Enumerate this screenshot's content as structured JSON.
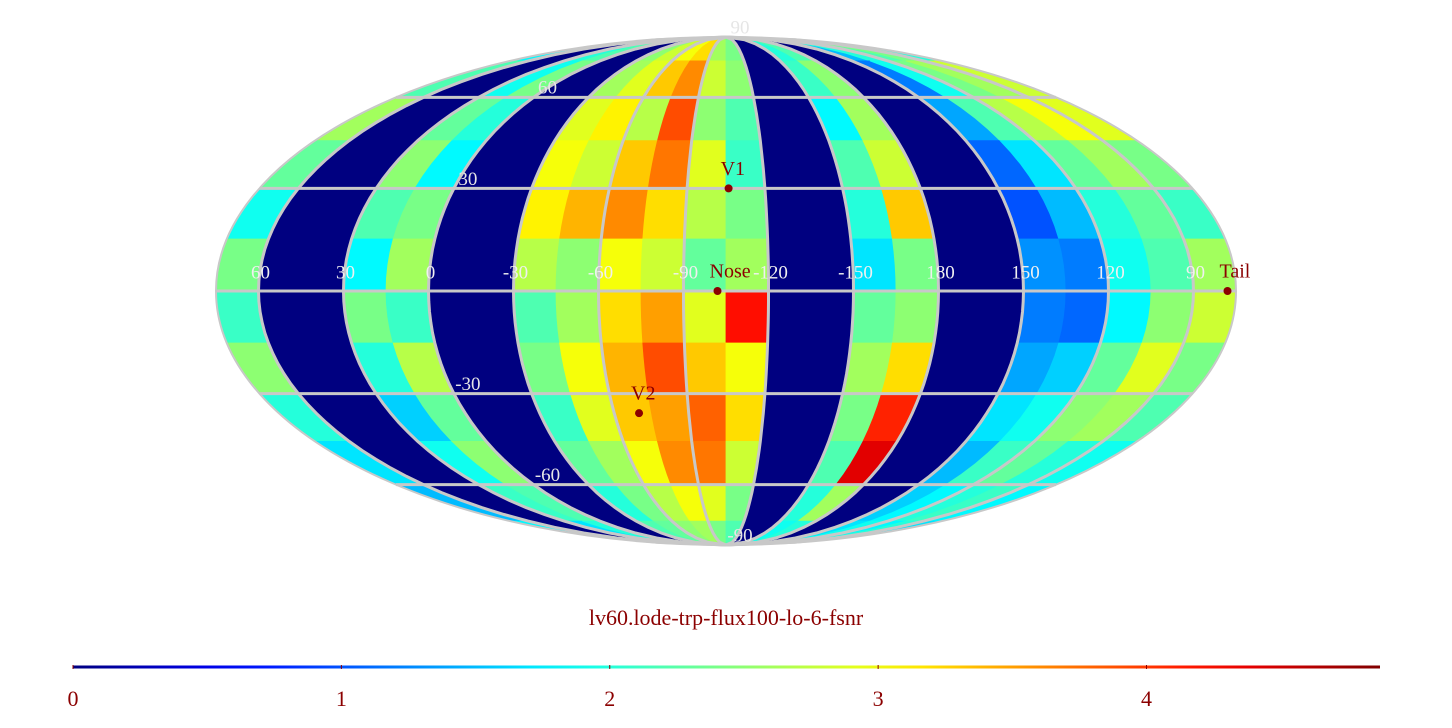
{
  "chart_data": {
    "type": "map",
    "title": "lv60.lode-trp-flux100-lo-6-fsnr",
    "colormap": "jet",
    "grid_color": "#c8c8c8",
    "marker_color": "#8b0000",
    "lon_range": [
      75,
      -285
    ],
    "lat_range": [
      90,
      -90
    ],
    "lon_ticks": [
      60,
      30,
      0,
      -30,
      -60,
      -90,
      -120,
      -150,
      {
        "value": -180,
        "label": "180"
      },
      {
        "value": -210,
        "label": "150"
      },
      {
        "value": -240,
        "label": "120"
      },
      {
        "value": -270,
        "label": "90"
      }
    ],
    "lat_ticks": [
      90,
      60,
      30,
      -30,
      -60,
      -90
    ],
    "colorbar_range": [
      0,
      4.87
    ],
    "colorbar_ticks": [
      0,
      1,
      2,
      3,
      4
    ],
    "cells": [
      [
        1.8,
        0,
        0,
        2.0,
        2.2,
        0,
        0,
        2.5,
        2.8,
        3.0,
        3.2,
        2.6,
        2.4,
        0,
        0,
        2.0,
        2.2,
        0,
        0,
        1.5,
        2.0,
        2.2,
        2.4,
        2.0
      ],
      [
        2.2,
        0,
        0,
        1.9,
        2.4,
        0,
        0,
        2.6,
        2.9,
        3.3,
        3.6,
        2.8,
        2.5,
        0,
        0,
        2.1,
        2.5,
        0,
        0,
        1.2,
        1.9,
        2.4,
        2.6,
        2.8
      ],
      [
        2.6,
        0,
        0,
        2.3,
        2.0,
        0,
        0,
        2.9,
        3.1,
        2.7,
        3.9,
        2.5,
        2.2,
        0,
        0,
        1.8,
        2.6,
        0,
        0,
        1.4,
        2.2,
        2.7,
        3.0,
        2.9
      ],
      [
        2.3,
        0,
        0,
        2.5,
        1.8,
        0,
        0,
        3.0,
        2.8,
        3.3,
        3.7,
        2.9,
        2.1,
        0,
        0,
        2.2,
        2.8,
        0,
        0,
        1.1,
        1.7,
        2.3,
        2.6,
        2.4
      ],
      [
        1.9,
        0,
        0,
        2.2,
        2.4,
        0,
        0,
        3.1,
        3.4,
        3.6,
        3.2,
        2.7,
        2.4,
        0,
        0,
        2.0,
        3.3,
        0,
        0,
        1.0,
        1.5,
        2.0,
        2.3,
        2.1
      ],
      [
        2.4,
        0,
        0,
        1.8,
        2.6,
        0,
        0,
        2.7,
        2.5,
        3.0,
        2.8,
        2.3,
        2.6,
        0,
        0,
        1.7,
        2.4,
        0,
        0,
        1.3,
        1.2,
        1.9,
        2.2,
        2.6
      ],
      [
        2.1,
        0,
        0,
        2.4,
        2.1,
        0,
        0,
        2.2,
        2.6,
        3.2,
        3.5,
        2.9,
        4.2,
        0,
        0,
        2.3,
        2.5,
        0,
        0,
        1.2,
        1.1,
        1.8,
        2.5,
        2.8
      ],
      [
        2.5,
        0,
        0,
        2.0,
        2.7,
        0,
        0,
        2.4,
        3.0,
        3.4,
        3.9,
        3.3,
        3.0,
        0,
        0,
        2.6,
        3.2,
        0,
        0,
        1.4,
        1.6,
        2.3,
        2.9,
        2.4
      ],
      [
        2.0,
        0,
        0,
        1.6,
        2.3,
        0,
        0,
        2.1,
        2.9,
        3.3,
        3.5,
        3.8,
        3.2,
        0,
        0,
        2.4,
        4.1,
        0,
        0,
        1.7,
        1.9,
        2.5,
        2.6,
        2.2
      ],
      [
        1.7,
        0,
        0,
        1.9,
        2.5,
        0,
        0,
        2.3,
        2.6,
        3.0,
        3.6,
        3.7,
        2.8,
        0,
        0,
        2.2,
        4.4,
        0,
        0,
        1.5,
        2.1,
        2.3,
        2.0,
        1.9
      ],
      [
        1.5,
        0,
        0,
        2.1,
        2.2,
        0,
        0,
        2.0,
        2.4,
        2.7,
        3.0,
        2.9,
        2.4,
        0,
        0,
        2.0,
        2.6,
        0,
        0,
        1.6,
        1.8,
        2.0,
        2.1,
        1.8
      ],
      [
        1.8,
        0,
        0,
        1.7,
        2.0,
        0,
        0,
        2.2,
        2.3,
        2.5,
        2.6,
        2.4,
        2.2,
        0,
        0,
        1.9,
        2.0,
        0,
        0,
        1.7,
        1.9,
        1.8,
        2.0,
        1.7
      ]
    ],
    "points": [
      {
        "name": "V1",
        "lon": -106,
        "lat": 30
      },
      {
        "name": "Nose",
        "lon": -102,
        "lat": 0
      },
      {
        "name": "V2",
        "lon": -70,
        "lat": -36
      },
      {
        "name": "Tail",
        "lon": -282,
        "lat": 0
      }
    ]
  }
}
